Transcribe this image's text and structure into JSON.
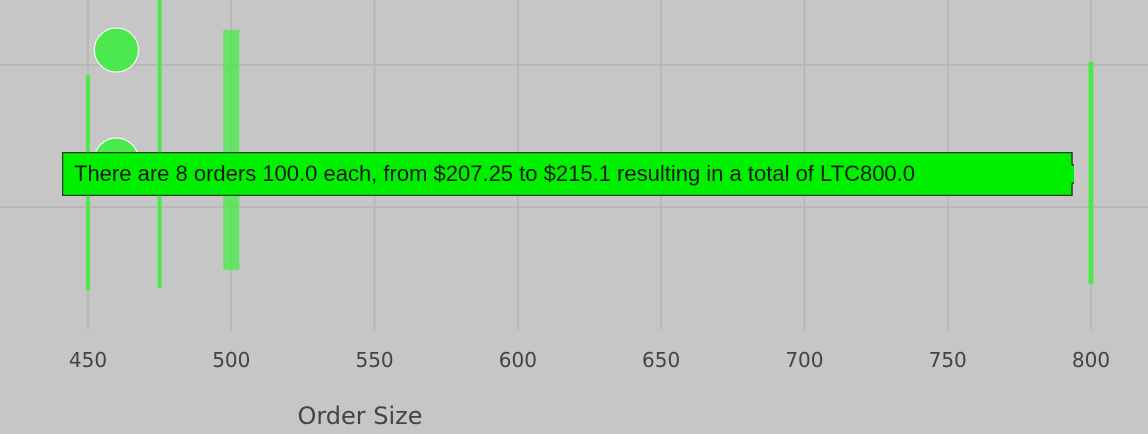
{
  "chart_data": {
    "type": "scatter",
    "title": "",
    "xlabel": "Order Size",
    "ylabel": "",
    "xlim": [
      445,
      810
    ],
    "x_ticks": [
      450,
      500,
      550,
      600,
      650,
      700,
      750,
      800
    ],
    "x_tick_labels": [
      "450",
      "500",
      "550",
      "600",
      "650",
      "700",
      "750",
      "800"
    ],
    "grid": true,
    "legend": "none",
    "color": "#4de84d",
    "bubbles": [
      {
        "x": 462
      },
      {
        "x": 462
      }
    ],
    "bars": [
      {
        "x": 450
      },
      {
        "x": 475
      },
      {
        "x": 500
      },
      {
        "x": 800
      }
    ],
    "tooltip": "There are 8 orders 100.0 each, from $207.25 to $215.1 resulting in a total of LTC800.0"
  }
}
